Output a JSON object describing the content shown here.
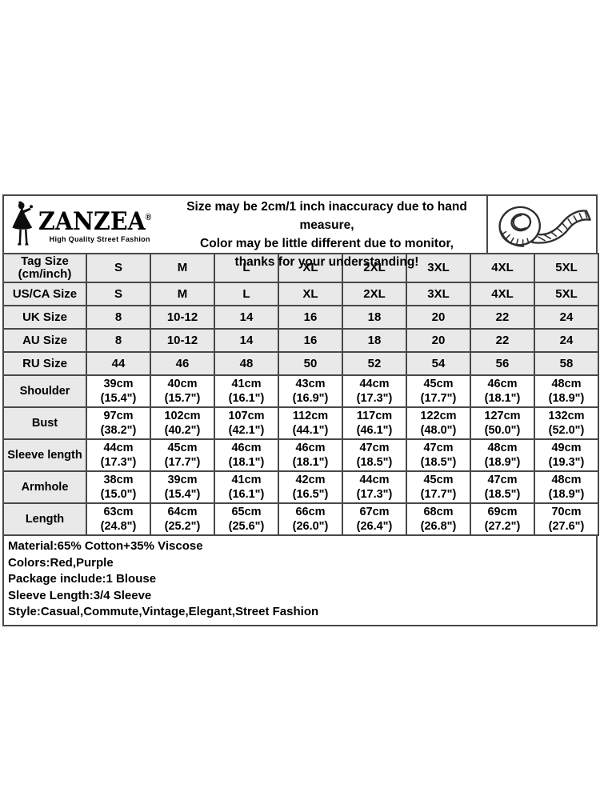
{
  "header": {
    "brand": {
      "name": "ZANZEA",
      "reg": "®",
      "tagline": "High Quality Street Fashion"
    },
    "notice_lines": [
      "Size may be 2cm/1 inch inaccuracy due to hand measure,",
      "Color may be little different due to monitor,",
      "thanks for your understanding!"
    ],
    "icons": {
      "logo_figure": "woman-silhouette-icon",
      "measure": "tape-measure-icon"
    }
  },
  "size_table": {
    "rows": [
      {
        "label": "Tag Size\n(cm/inch)",
        "values": [
          "S",
          "M",
          "L",
          "XL",
          "2XL",
          "3XL",
          "4XL",
          "5XL"
        ]
      },
      {
        "label": "US/CA Size",
        "values": [
          "S",
          "M",
          "L",
          "XL",
          "2XL",
          "3XL",
          "4XL",
          "5XL"
        ]
      },
      {
        "label": "UK Size",
        "values": [
          "8",
          "10-12",
          "14",
          "16",
          "18",
          "20",
          "22",
          "24"
        ]
      },
      {
        "label": "AU Size",
        "values": [
          "8",
          "10-12",
          "14",
          "16",
          "18",
          "20",
          "22",
          "24"
        ]
      },
      {
        "label": "RU Size",
        "values": [
          "44",
          "46",
          "48",
          "50",
          "52",
          "54",
          "56",
          "58"
        ]
      },
      {
        "label": "Shoulder",
        "values": [
          "39cm\n(15.4\")",
          "40cm\n(15.7\")",
          "41cm\n(16.1\")",
          "43cm\n(16.9\")",
          "44cm\n(17.3\")",
          "45cm\n(17.7\")",
          "46cm\n(18.1\")",
          "48cm\n(18.9\")"
        ]
      },
      {
        "label": "Bust",
        "values": [
          "97cm\n(38.2\")",
          "102cm\n(40.2\")",
          "107cm\n(42.1\")",
          "112cm\n(44.1\")",
          "117cm\n(46.1\")",
          "122cm\n(48.0\")",
          "127cm\n(50.0\")",
          "132cm\n(52.0\")"
        ]
      },
      {
        "label": "Sleeve length",
        "values": [
          "44cm\n(17.3\")",
          "45cm\n(17.7\")",
          "46cm\n(18.1\")",
          "46cm\n(18.1\")",
          "47cm\n(18.5\")",
          "47cm\n(18.5\")",
          "48cm\n(18.9\")",
          "49cm\n(19.3\")"
        ]
      },
      {
        "label": "Armhole",
        "values": [
          "38cm\n(15.0\")",
          "39cm\n(15.4\")",
          "41cm\n(16.1\")",
          "42cm\n(16.5\")",
          "44cm\n(17.3\")",
          "45cm\n(17.7\")",
          "47cm\n(18.5\")",
          "48cm\n(18.9\")"
        ]
      },
      {
        "label": "Length",
        "values": [
          "63cm\n(24.8\")",
          "64cm\n(25.2\")",
          "65cm\n(25.6\")",
          "66cm\n(26.0\")",
          "67cm\n(26.4\")",
          "68cm\n(26.8\")",
          "69cm\n(27.2\")",
          "70cm\n(27.6\")"
        ]
      }
    ]
  },
  "details_lines": [
    "Material:65% Cotton+35% Viscose",
    "Colors:Red,Purple",
    "Package include:1 Blouse",
    "Sleeve Length:3/4 Sleeve",
    "Style:Casual,Commute,Vintage,Elegant,Street Fashion"
  ],
  "colors": {
    "cell_shade": "#e9e9e9",
    "border": "#484848",
    "text": "#000000"
  }
}
